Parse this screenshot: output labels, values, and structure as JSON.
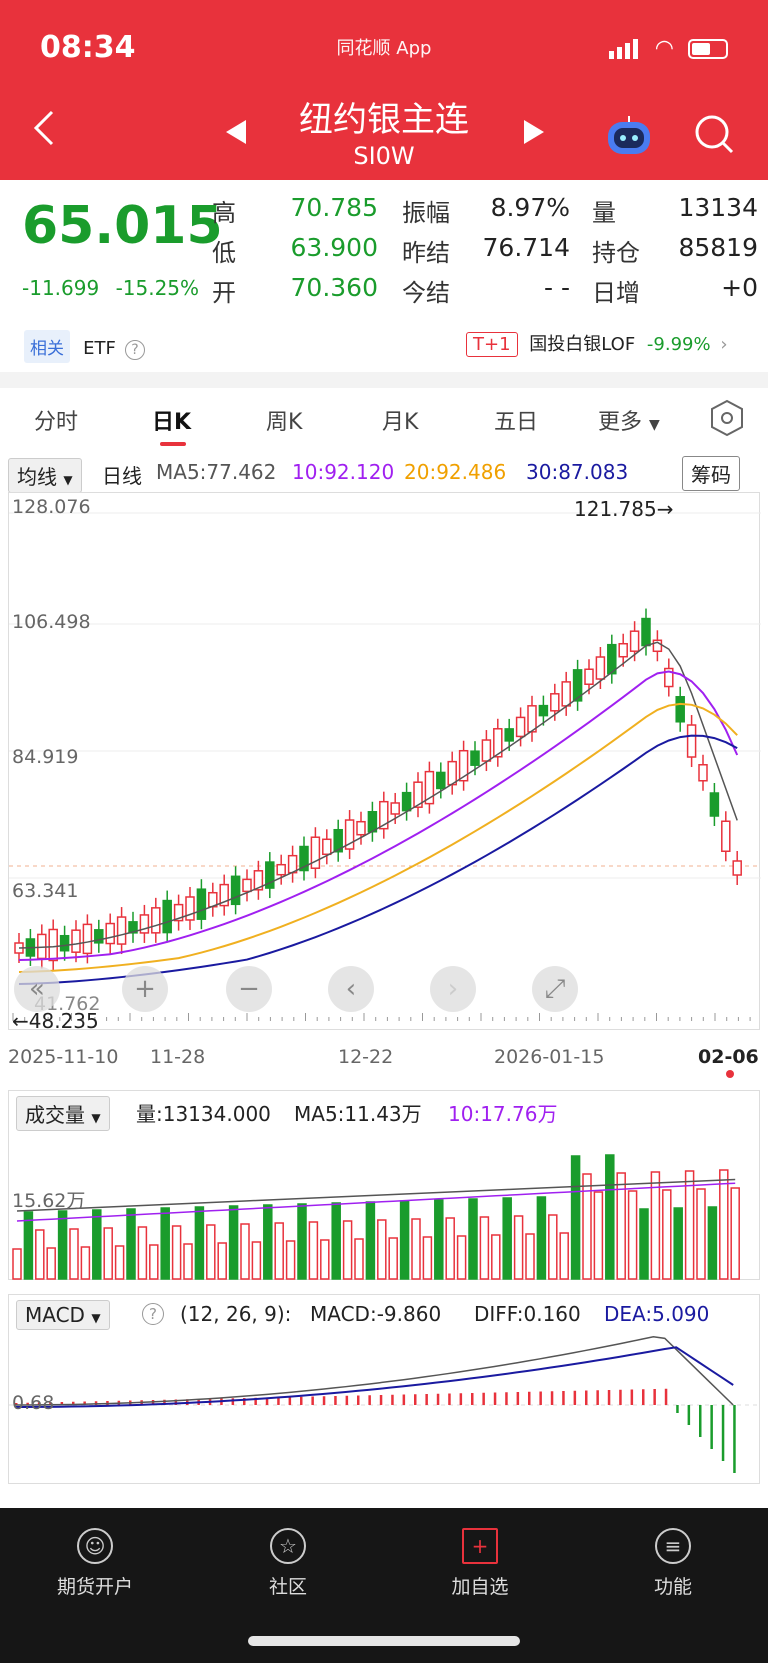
{
  "status_bar": {
    "time": "08:34",
    "app_name": "同花顺 App"
  },
  "header": {
    "title": "纽约银主连",
    "symbol": "SI0W"
  },
  "quote": {
    "price": "65.015",
    "change": "-11.699",
    "change_pct": "-15.25%",
    "high_label": "高",
    "high": "70.785",
    "low_label": "低",
    "low": "63.900",
    "open_label": "开",
    "open": "70.360",
    "amp_label": "振幅",
    "amp": "8.97%",
    "prev_settle_label": "昨结",
    "prev_settle": "76.714",
    "settle_label": "今结",
    "settle": "- -",
    "vol_label": "量",
    "vol": "13134",
    "oi_label": "持仓",
    "oi": "85819",
    "oi_change_label": "日增",
    "oi_change": "+0"
  },
  "related": {
    "tag": "相关",
    "etf": "ETF",
    "t1_tag": "T+1",
    "fund": "国投白银LOF",
    "fund_change": "-9.99%"
  },
  "tabs": [
    "分时",
    "日K",
    "周K",
    "月K",
    "五日",
    "更多"
  ],
  "kline": {
    "indicator_select": "均线",
    "period": "日线",
    "ma5": "MA5:77.462",
    "ma10": "10:92.120",
    "ma20": "20:92.486",
    "ma30": "30:87.083",
    "chip_button": "筹码",
    "y_ticks": [
      "128.076",
      "106.498",
      "84.919",
      "63.341",
      "41.762"
    ],
    "max_marker": "121.785→",
    "min_marker": "←48.235",
    "dates": [
      "2025-11-10",
      "11-28",
      "12-22",
      "2026-01-15",
      "02-06"
    ]
  },
  "volume": {
    "select": "成交量",
    "vol": "量:13134.000",
    "ma5": "MA5:11.43万",
    "ma10": "10:17.76万",
    "tick": "15.62万"
  },
  "macd": {
    "select": "MACD",
    "params": "(12, 26, 9):",
    "macd": "MACD:-9.860",
    "diff": "DIFF:0.160",
    "dea": "DEA:5.090",
    "tick": "0.68"
  },
  "footer": [
    "期货开户",
    "社区",
    "加自选",
    "功能"
  ],
  "colors": {
    "header": "#e8323c",
    "down": "#1a9c2c",
    "up": "#e8323c",
    "ma5": "#555555",
    "ma10": "#a020f0",
    "ma20": "#f0b020",
    "ma30": "#1a1aa0"
  }
}
